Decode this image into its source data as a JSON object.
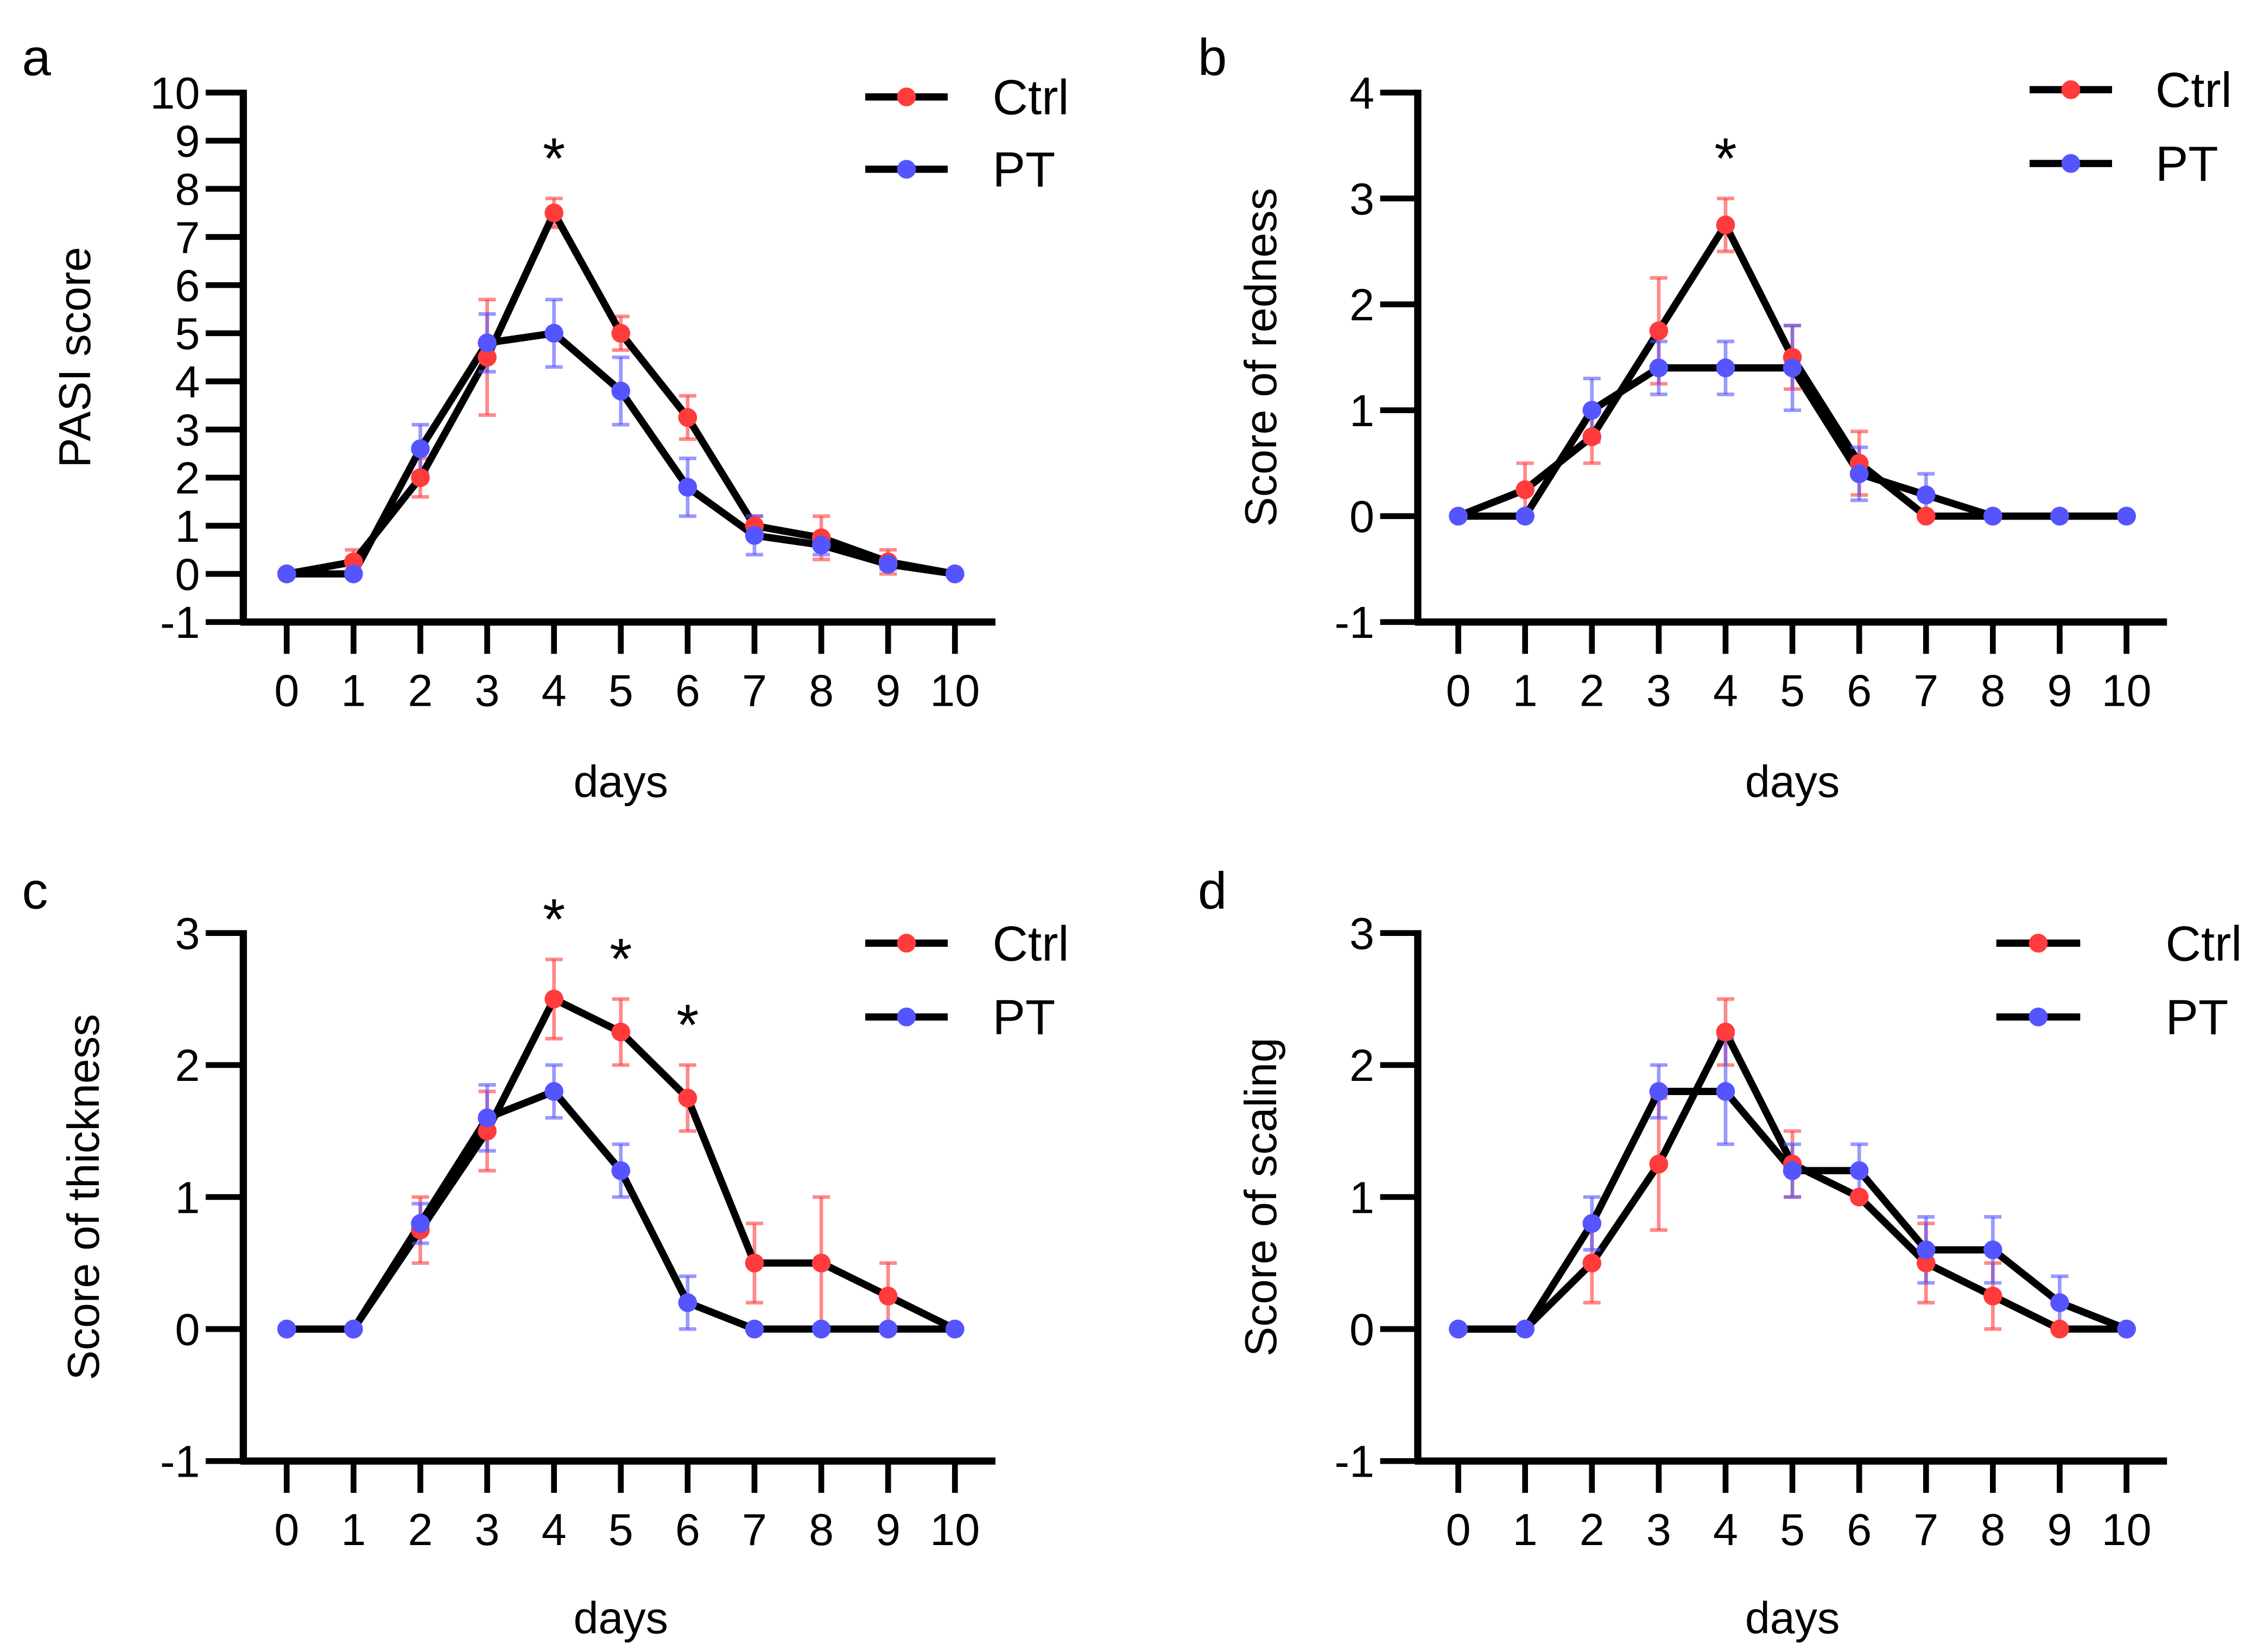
{
  "colors": {
    "ctrl": "#ff3b3b",
    "pt": "#5555ff",
    "line": "#000000"
  },
  "chart_data": [
    {
      "panel_label": "a",
      "type": "line",
      "xlabel": "days",
      "ylabel": "PASI score",
      "ylim": [
        -1,
        10
      ],
      "yticks": [
        "-1",
        "0",
        "1",
        "2",
        "3",
        "4",
        "5",
        "6",
        "7",
        "8",
        "9",
        "10"
      ],
      "x": [
        0,
        1,
        2,
        3,
        4,
        5,
        6,
        7,
        8,
        9,
        10
      ],
      "xticks": [
        "0",
        "1",
        "2",
        "3",
        "4",
        "5",
        "6",
        "7",
        "8",
        "9",
        "10"
      ],
      "legend": "top-right",
      "series": [
        {
          "name": "Ctrl",
          "values": [
            0,
            0.25,
            2,
            4.5,
            7.5,
            5,
            3.25,
            1,
            0.75,
            0.25,
            0
          ],
          "error": [
            0,
            0.25,
            0.4,
            1.2,
            0.3,
            0.35,
            0.45,
            0.2,
            0.45,
            0.25,
            0
          ]
        },
        {
          "name": "PT",
          "values": [
            0,
            0,
            2.6,
            4.8,
            5,
            3.8,
            1.8,
            0.8,
            0.6,
            0.2,
            0
          ],
          "error": [
            0,
            0,
            0.5,
            0.6,
            0.7,
            0.7,
            0.6,
            0.4,
            0.2,
            0.1,
            0
          ]
        }
      ],
      "annotations": [
        {
          "x": 4,
          "text": "*"
        }
      ]
    },
    {
      "panel_label": "b",
      "type": "line",
      "xlabel": "days",
      "ylabel": "Score of redness",
      "ylim": [
        -1,
        4
      ],
      "yticks": [
        "-1",
        "0",
        "1",
        "2",
        "3",
        "4"
      ],
      "x": [
        0,
        1,
        2,
        3,
        4,
        5,
        6,
        7,
        8,
        9,
        10
      ],
      "xticks": [
        "0",
        "1",
        "2",
        "3",
        "4",
        "5",
        "6",
        "7",
        "8",
        "9",
        "10"
      ],
      "legend": "top-right",
      "series": [
        {
          "name": "Ctrl",
          "values": [
            0,
            0.25,
            0.75,
            1.75,
            2.75,
            1.5,
            0.5,
            0,
            0,
            0,
            0
          ],
          "error": [
            0,
            0.25,
            0.25,
            0.5,
            0.25,
            0.3,
            0.3,
            0,
            0,
            0,
            0
          ]
        },
        {
          "name": "PT",
          "values": [
            0,
            0,
            1.0,
            1.4,
            1.4,
            1.4,
            0.4,
            0.2,
            0,
            0,
            0
          ],
          "error": [
            0,
            0,
            0.3,
            0.25,
            0.25,
            0.4,
            0.25,
            0.2,
            0,
            0,
            0
          ]
        }
      ],
      "annotations": [
        {
          "x": 4,
          "text": "*"
        }
      ]
    },
    {
      "panel_label": "c",
      "type": "line",
      "xlabel": "days",
      "ylabel": "Score of thickness",
      "ylim": [
        -1,
        3
      ],
      "yticks": [
        "-1",
        "0",
        "1",
        "2",
        "3"
      ],
      "x": [
        0,
        1,
        2,
        3,
        4,
        5,
        6,
        7,
        8,
        9,
        10
      ],
      "xticks": [
        "0",
        "1",
        "2",
        "3",
        "4",
        "5",
        "6",
        "7",
        "8",
        "9",
        "10"
      ],
      "legend": "top-right",
      "series": [
        {
          "name": "Ctrl",
          "values": [
            0,
            0,
            0.75,
            1.5,
            2.5,
            2.25,
            1.75,
            0.5,
            0.5,
            0.25,
            0
          ],
          "error": [
            0,
            0,
            0.25,
            0.3,
            0.3,
            0.25,
            0.25,
            0.3,
            0.5,
            0.25,
            0
          ]
        },
        {
          "name": "PT",
          "values": [
            0,
            0,
            0.8,
            1.6,
            1.8,
            1.2,
            0.2,
            0,
            0,
            0,
            0
          ],
          "error": [
            0,
            0,
            0.15,
            0.25,
            0.2,
            0.2,
            0.2,
            0,
            0,
            0,
            0
          ]
        }
      ],
      "annotations": [
        {
          "x": 4,
          "text": "*"
        },
        {
          "x": 5,
          "text": "*"
        },
        {
          "x": 6,
          "text": "*"
        }
      ]
    },
    {
      "panel_label": "d",
      "type": "line",
      "xlabel": "days",
      "ylabel": "Score of scaling",
      "ylim": [
        -1,
        3
      ],
      "yticks": [
        "-1",
        "0",
        "1",
        "2",
        "3"
      ],
      "x": [
        0,
        1,
        2,
        3,
        4,
        5,
        6,
        7,
        8,
        9,
        10
      ],
      "xticks": [
        "0",
        "1",
        "2",
        "3",
        "4",
        "5",
        "6",
        "7",
        "8",
        "9",
        "10"
      ],
      "legend": "top-right",
      "series": [
        {
          "name": "Ctrl",
          "values": [
            0,
            0,
            0.5,
            1.25,
            2.25,
            1.25,
            1.0,
            0.5,
            0.25,
            0,
            0
          ],
          "error": [
            0,
            0,
            0.3,
            0.5,
            0.25,
            0.25,
            0,
            0.3,
            0.25,
            0,
            0
          ]
        },
        {
          "name": "PT",
          "values": [
            0,
            0,
            0.8,
            1.8,
            1.8,
            1.2,
            1.2,
            0.6,
            0.6,
            0.2,
            0
          ],
          "error": [
            0,
            0,
            0.2,
            0.2,
            0.4,
            0.2,
            0.2,
            0.25,
            0.25,
            0.2,
            0
          ]
        }
      ],
      "annotations": []
    }
  ]
}
